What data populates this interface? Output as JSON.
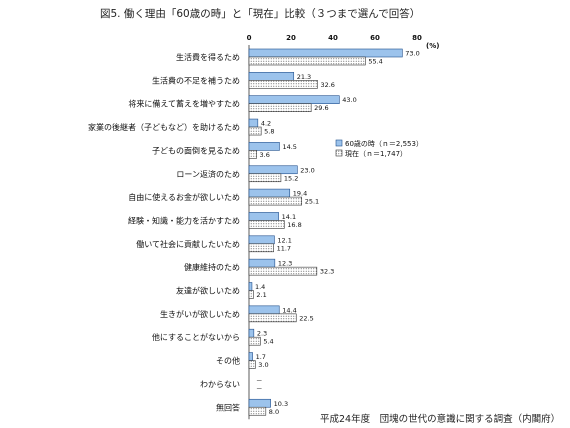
{
  "figure": {
    "title": "図5.  働く理由「60歳の時」と「現在」比較（３つまで選んで回答）",
    "source": "平成24年度　団塊の世代の意識に関する調査（内閣府）"
  },
  "chart_data": {
    "type": "bar",
    "orientation": "horizontal",
    "title": "図5.  働く理由「60歳の時」と「現在」比較（３つまで選んで回答）",
    "unit": "(%)",
    "xlim": [
      0,
      80
    ],
    "xticks": [
      "0",
      "20",
      "40",
      "60",
      "80"
    ],
    "grid": false,
    "legend_position": "middle-right",
    "categories": [
      "生活費を得るため",
      "生活費の不足を補うため",
      "将来に備えて蓄えを増やすため",
      "家業の後継者（子どもなど）を助けるため",
      "子どもの面倒を見るため",
      "ローン返済のため",
      "自由に使えるお金が欲しいため",
      "経験・知識・能力を活かすため",
      "働いて社会に貢献したいため",
      "健康維持のため",
      "友達が欲しいため",
      "生きがいが欲しいため",
      "他にすることがないから",
      "その他",
      "わからない",
      "無回答"
    ],
    "series": [
      {
        "name": "60歳の時（ｎ＝2,553）",
        "color": "#9cc3ec",
        "values": [
          73.0,
          21.3,
          43.0,
          4.2,
          14.5,
          23.0,
          19.4,
          14.1,
          12.1,
          12.3,
          1.4,
          14.4,
          2.3,
          1.7,
          null,
          10.3
        ],
        "labels": [
          "73.0",
          "21.3",
          "43.0",
          "4.2",
          "14.5",
          "23.0",
          "19.4",
          "14.1",
          "12.1",
          "12.3",
          "1.4",
          "14.4",
          "2.3",
          "1.7",
          "－",
          "10.3"
        ]
      },
      {
        "name": "現在（ｎ＝1,747）",
        "color": "#ffffff",
        "pattern": "dotted",
        "values": [
          55.4,
          32.6,
          29.6,
          5.8,
          3.6,
          15.2,
          25.1,
          16.8,
          11.7,
          32.3,
          2.1,
          22.5,
          5.4,
          3.0,
          null,
          8.0
        ],
        "labels": [
          "55.4",
          "32.6",
          "29.6",
          "5.8",
          "3.6",
          "15.2",
          "25.1",
          "16.8",
          "11.7",
          "32.3",
          "2.1",
          "22.5",
          "5.4",
          "3.0",
          "－",
          "8.0"
        ]
      }
    ]
  }
}
